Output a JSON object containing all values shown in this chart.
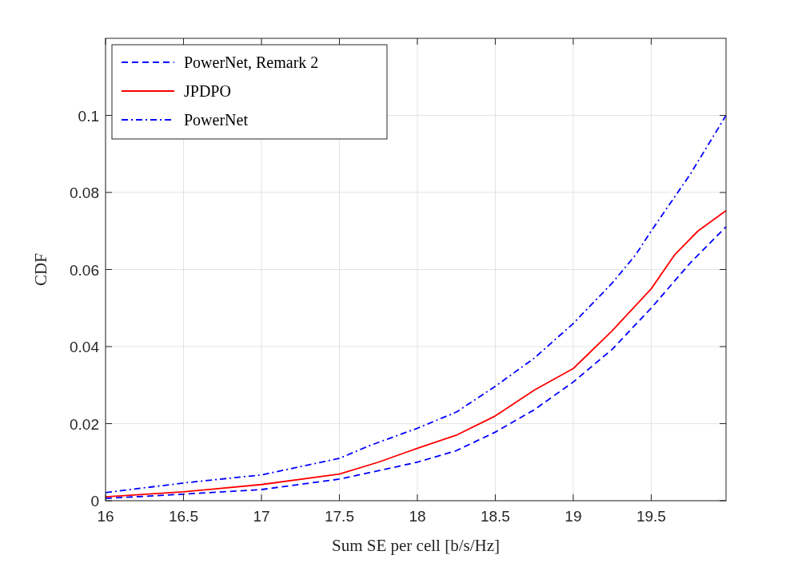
{
  "chart_data": {
    "type": "line",
    "xlabel": "Sum SE per cell [b/s/Hz]",
    "ylabel": "CDF",
    "xlim": [
      16,
      19.98
    ],
    "xticks": [
      16,
      16.5,
      17,
      17.5,
      18,
      18.5,
      19,
      19.5
    ],
    "ylim": [
      0,
      0.12
    ],
    "yticks": [
      0,
      0.02,
      0.04,
      0.06,
      0.08,
      0.1
    ],
    "grid": true,
    "legend": "top left",
    "marker": "none",
    "series": [
      {
        "name": "PowerNet, Remark 2",
        "color": "#0000ff",
        "line_style": "dashed",
        "x": [
          16,
          16.5,
          17,
          17.5,
          18,
          18.25,
          18.5,
          18.75,
          19,
          19.25,
          19.5,
          19.75,
          19.98
        ],
        "values": [
          0.0006,
          0.0017,
          0.0029,
          0.0056,
          0.01,
          0.013,
          0.0178,
          0.0236,
          0.0308,
          0.0393,
          0.05,
          0.0617,
          0.0711
        ]
      },
      {
        "name": "JPDPO",
        "color": "#ff0000",
        "line_style": "solid",
        "x": [
          16,
          16.5,
          17,
          17.5,
          17.75,
          18,
          18.25,
          18.5,
          18.75,
          19,
          19.25,
          19.5,
          19.65,
          19.8,
          19.98
        ],
        "values": [
          0.001,
          0.0023,
          0.0042,
          0.0069,
          0.01,
          0.0136,
          0.017,
          0.022,
          0.0287,
          0.0343,
          0.0441,
          0.055,
          0.0638,
          0.07,
          0.0753
        ]
      },
      {
        "name": "PowerNet",
        "color": "#0000ff",
        "line_style": "dashdot",
        "x": [
          16,
          16.5,
          17,
          17.5,
          17.7,
          18,
          18.25,
          18.5,
          18.75,
          19,
          19.25,
          19.4,
          19.5,
          19.75,
          19.98
        ],
        "values": [
          0.0021,
          0.0046,
          0.0067,
          0.011,
          0.0144,
          0.0188,
          0.023,
          0.0297,
          0.037,
          0.046,
          0.0565,
          0.0638,
          0.07,
          0.0847,
          0.1
        ]
      }
    ]
  }
}
